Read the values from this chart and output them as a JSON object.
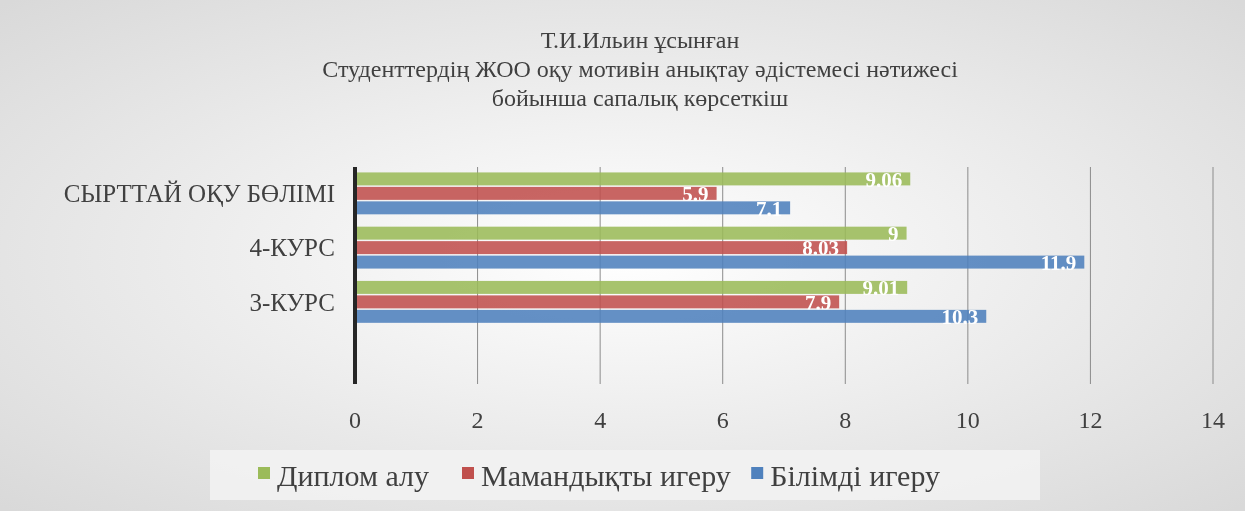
{
  "chart_data": {
    "type": "bar",
    "orientation": "horizontal",
    "title": "Т.И.Ильин ұсынған\nСтуденттердің ЖОО оқу мотивін анықтау әдістемесі нәтижесі\nбойынша  сапалық көрсеткіш",
    "categories": [
      "СЫРТТАЙ ОҚУ БӨЛІМІ",
      "4-КУРС",
      "3-КУРС",
      null
    ],
    "series": [
      {
        "name": "Диплом алу",
        "color": "#9bbb59",
        "values": [
          9.06,
          9,
          9.01,
          null
        ]
      },
      {
        "name": "Мамандықты игеру",
        "color": "#c0504d",
        "values": [
          5.9,
          8.03,
          7.9,
          null
        ]
      },
      {
        "name": "Білімді игеру",
        "color": "#4f81bd",
        "values": [
          7.1,
          11.9,
          10.3,
          null
        ]
      }
    ],
    "xlim": [
      0,
      14
    ],
    "xticks": [
      0,
      2,
      4,
      6,
      8,
      10,
      12,
      14
    ],
    "grid": "x",
    "legend": "bottom",
    "data_labels": true
  }
}
